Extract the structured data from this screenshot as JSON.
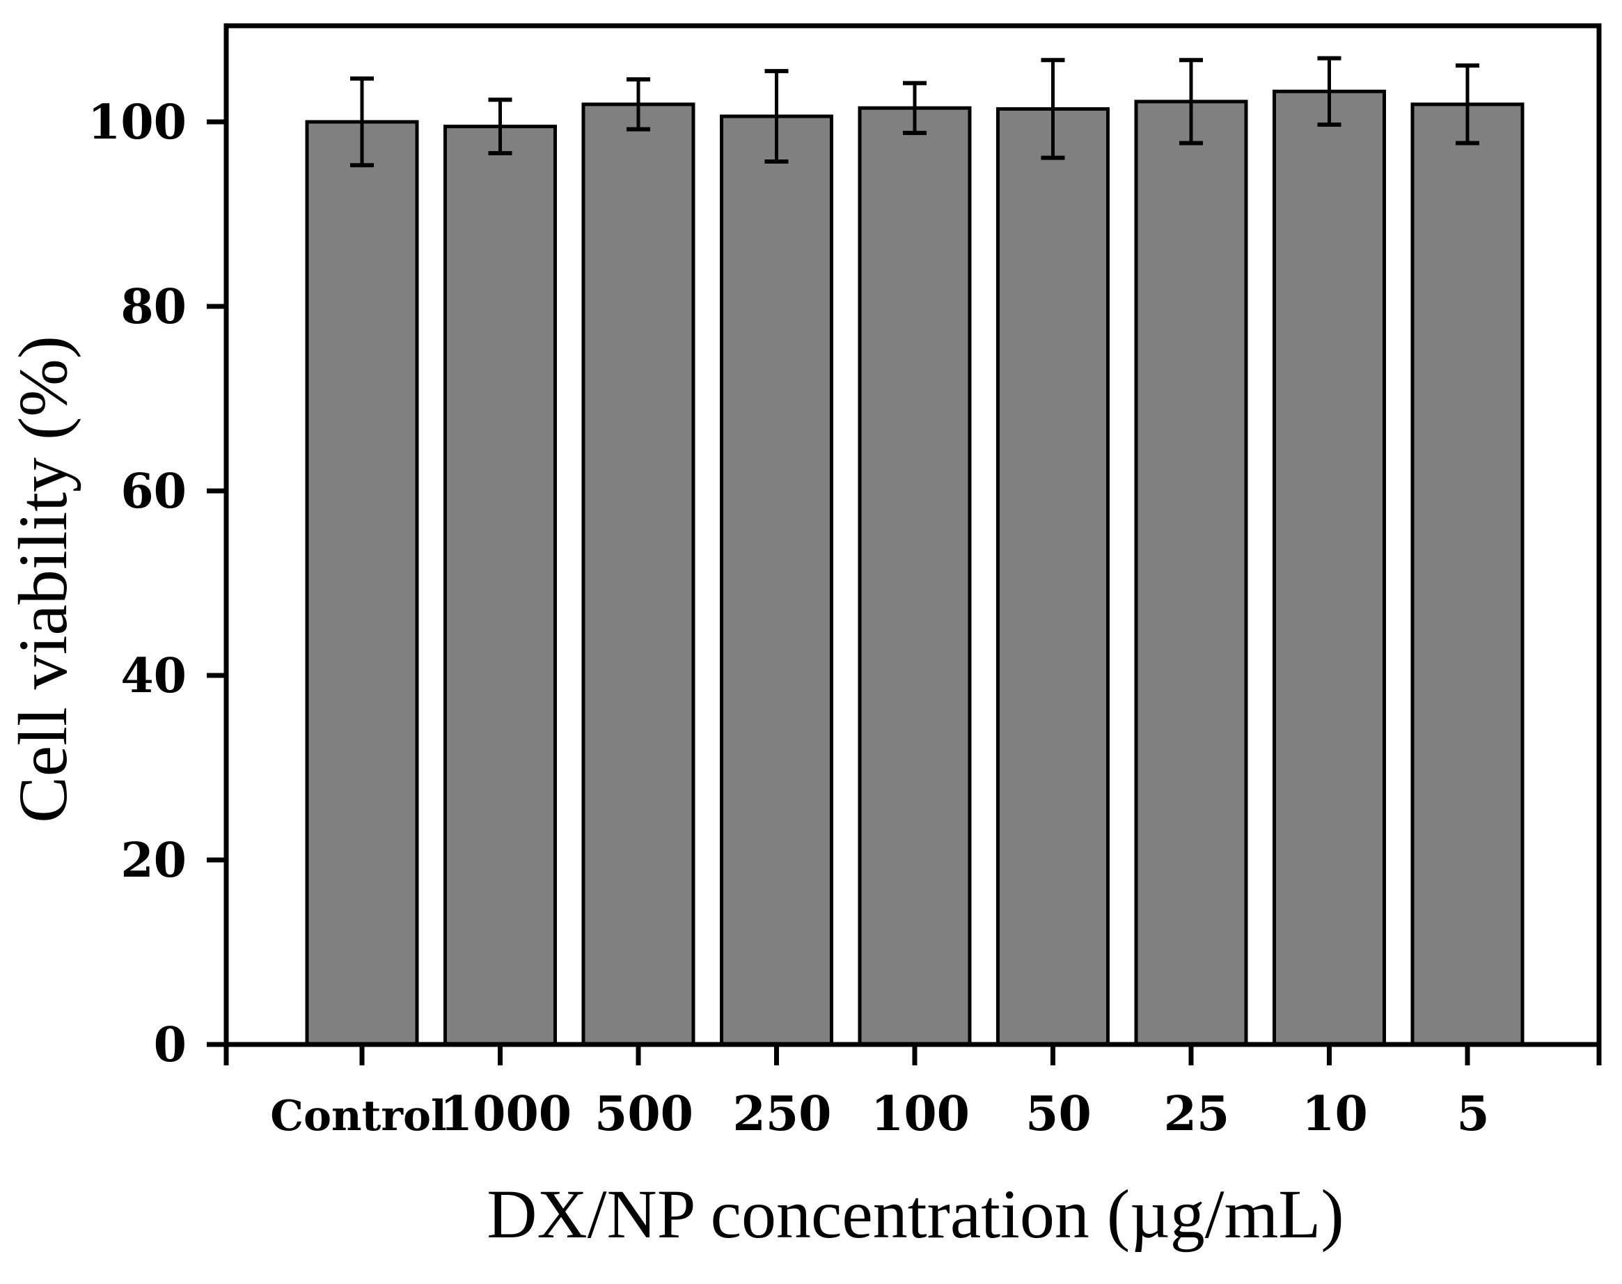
{
  "chart_data": {
    "type": "bar",
    "title": "",
    "xlabel": "DX/NP concentration (µg/mL)",
    "ylabel": "Cell viability (%)",
    "categories": [
      "Control",
      "1000",
      "500",
      "250",
      "100",
      "50",
      "25",
      "10",
      "5"
    ],
    "values": [
      100.0,
      99.5,
      101.9,
      100.6,
      101.5,
      101.4,
      102.2,
      103.3,
      101.9
    ],
    "error": [
      4.7,
      2.9,
      2.7,
      4.9,
      2.7,
      5.3,
      4.5,
      3.6,
      4.2
    ],
    "ylim": [
      0,
      110
    ],
    "yticks": [
      0,
      20,
      40,
      60,
      80,
      100
    ],
    "grid": false,
    "legend": "none",
    "colors": {
      "bar_fill": "#808080",
      "bar_stroke": "#000000",
      "axis": "#000000"
    }
  }
}
